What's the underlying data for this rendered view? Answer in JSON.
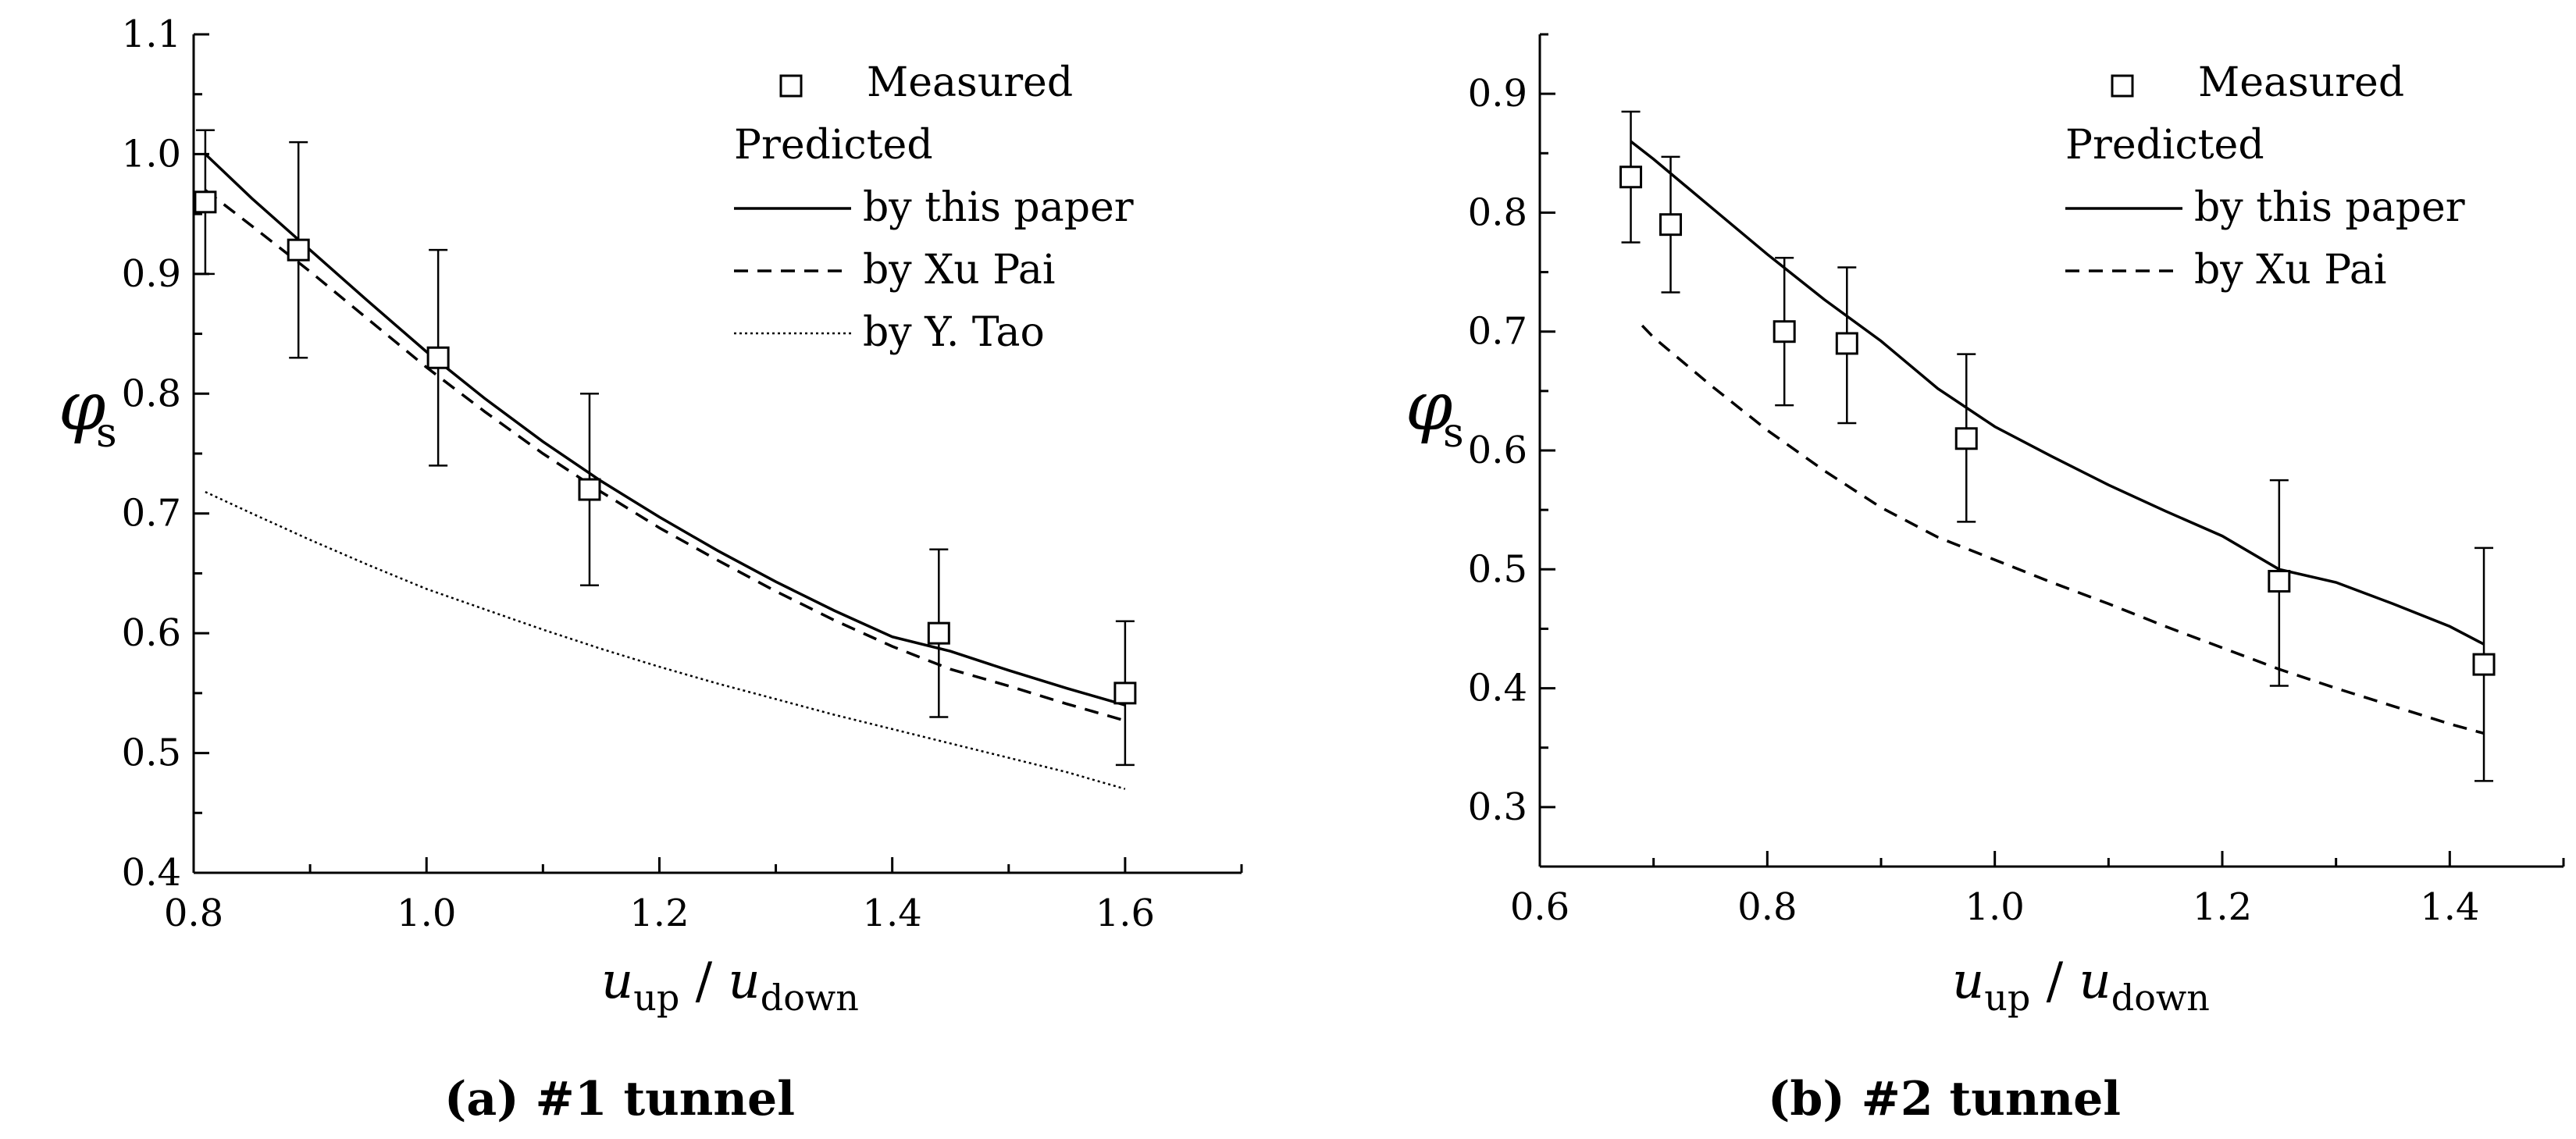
{
  "colors": {
    "ink": "#000000",
    "background": "#ffffff"
  },
  "chart_data": [
    {
      "type": "line",
      "caption_label": "(a)",
      "caption_title": "#1 tunnel",
      "xlabel_var": "u",
      "xlabel_sub1": "up",
      "xlabel_slash": "/",
      "xlabel_sub2": "down",
      "ylabel_var": "φ",
      "ylabel_sub": "s",
      "xlim": [
        0.8,
        1.7
      ],
      "ylim": [
        0.4,
        1.1
      ],
      "xticks": [
        0.8,
        1.0,
        1.2,
        1.4,
        1.6
      ],
      "xtick_labels": [
        "0.8",
        "1.0",
        "1.2",
        "1.4",
        "1.6"
      ],
      "yticks": [
        0.4,
        0.5,
        0.6,
        0.7,
        0.8,
        0.9,
        1.0,
        1.1
      ],
      "ytick_labels": [
        "0.4",
        "0.5",
        "0.6",
        "0.7",
        "0.8",
        "0.9",
        "1.0",
        "1.1"
      ],
      "legend_placement": "top-right",
      "legend_heading": "Predicted",
      "measured": {
        "name": "Measured",
        "x": [
          0.81,
          0.89,
          1.01,
          1.14,
          1.44,
          1.6
        ],
        "y": [
          0.96,
          0.92,
          0.83,
          0.72,
          0.6,
          0.55
        ],
        "err_low": [
          0.9,
          0.83,
          0.74,
          0.64,
          0.53,
          0.49
        ],
        "err_high": [
          1.02,
          1.01,
          0.92,
          0.8,
          0.67,
          0.61
        ]
      },
      "series": [
        {
          "name": "by this paper",
          "style": "solid",
          "x": [
            0.81,
            0.85,
            0.9,
            0.95,
            1.0,
            1.05,
            1.1,
            1.15,
            1.2,
            1.25,
            1.3,
            1.35,
            1.4,
            1.45,
            1.5,
            1.55,
            1.6
          ],
          "values": [
            1.0,
            0.963,
            0.92,
            0.877,
            0.835,
            0.796,
            0.76,
            0.727,
            0.697,
            0.669,
            0.643,
            0.619,
            0.597,
            0.585,
            0.569,
            0.554,
            0.54
          ]
        },
        {
          "name": "by Xu Pai",
          "style": "dashed",
          "x": [
            0.81,
            0.85,
            0.9,
            0.95,
            1.0,
            1.05,
            1.1,
            1.15,
            1.2,
            1.25,
            1.3,
            1.35,
            1.4,
            1.45,
            1.5,
            1.55,
            1.6
          ],
          "values": [
            0.97,
            0.94,
            0.902,
            0.862,
            0.822,
            0.785,
            0.75,
            0.718,
            0.688,
            0.661,
            0.635,
            0.611,
            0.589,
            0.57,
            0.556,
            0.541,
            0.527
          ]
        },
        {
          "name": "by Y. Tao",
          "style": "dotted",
          "x": [
            0.81,
            0.85,
            0.9,
            0.95,
            1.0,
            1.05,
            1.1,
            1.15,
            1.2,
            1.25,
            1.3,
            1.35,
            1.4,
            1.45,
            1.5,
            1.55,
            1.6
          ],
          "values": [
            0.718,
            0.7,
            0.678,
            0.657,
            0.637,
            0.62,
            0.603,
            0.587,
            0.572,
            0.558,
            0.545,
            0.532,
            0.52,
            0.508,
            0.496,
            0.484,
            0.47
          ]
        }
      ]
    },
    {
      "type": "line",
      "caption_label": "(b)",
      "caption_title": "#2 tunnel",
      "xlabel_var": "u",
      "xlabel_sub1": "up",
      "xlabel_slash": "/",
      "xlabel_sub2": "down",
      "ylabel_var": "φ",
      "ylabel_sub": "s",
      "xlim": [
        0.6,
        1.5
      ],
      "ylim": [
        0.25,
        0.95
      ],
      "xticks": [
        0.6,
        0.8,
        1.0,
        1.2,
        1.4
      ],
      "xtick_labels": [
        "0.6",
        "0.8",
        "1.0",
        "1.2",
        "1.4"
      ],
      "yticks": [
        0.3,
        0.4,
        0.5,
        0.6,
        0.7,
        0.8,
        0.9
      ],
      "ytick_labels": [
        "0.3",
        "0.4",
        "0.5",
        "0.6",
        "0.7",
        "0.8",
        "0.9"
      ],
      "legend_placement": "top-right",
      "legend_heading": "Predicted",
      "measured": {
        "name": "Measured",
        "x": [
          0.68,
          0.715,
          0.815,
          0.87,
          0.975,
          1.25,
          1.43
        ],
        "y": [
          0.83,
          0.79,
          0.7,
          0.69,
          0.61,
          0.49,
          0.42
        ],
        "err_low": [
          0.775,
          0.733,
          0.638,
          0.623,
          0.54,
          0.402,
          0.322
        ],
        "err_high": [
          0.885,
          0.847,
          0.762,
          0.754,
          0.681,
          0.575,
          0.518
        ]
      },
      "series": [
        {
          "name": "by this paper",
          "style": "solid",
          "x": [
            0.68,
            0.7,
            0.75,
            0.8,
            0.85,
            0.9,
            0.95,
            1.0,
            1.05,
            1.1,
            1.15,
            1.2,
            1.25,
            1.3,
            1.35,
            1.4,
            1.43
          ],
          "values": [
            0.86,
            0.845,
            0.805,
            0.765,
            0.727,
            0.692,
            0.652,
            0.62,
            0.595,
            0.571,
            0.549,
            0.528,
            0.5,
            0.489,
            0.471,
            0.452,
            0.437
          ]
        },
        {
          "name": "by Xu Pai",
          "style": "dashed",
          "x": [
            0.69,
            0.7,
            0.75,
            0.8,
            0.85,
            0.9,
            0.95,
            1.0,
            1.05,
            1.1,
            1.15,
            1.2,
            1.25,
            1.3,
            1.35,
            1.4,
            1.43
          ],
          "values": [
            0.705,
            0.695,
            0.655,
            0.617,
            0.583,
            0.552,
            0.527,
            0.508,
            0.489,
            0.471,
            0.452,
            0.434,
            0.416,
            0.4,
            0.385,
            0.37,
            0.362
          ]
        }
      ]
    }
  ]
}
